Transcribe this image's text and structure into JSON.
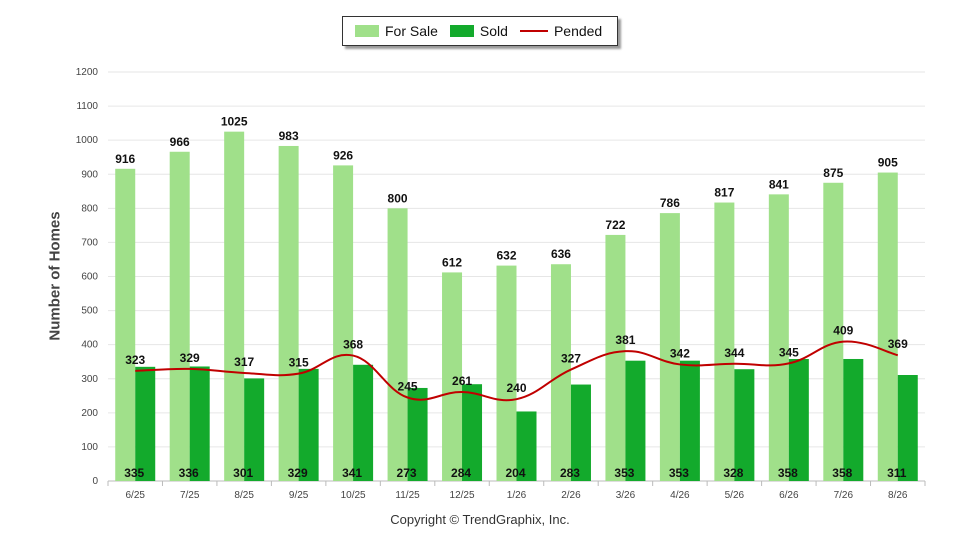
{
  "chart_data": {
    "type": "bar",
    "categories": [
      "6/25",
      "7/25",
      "8/25",
      "9/25",
      "10/25",
      "11/25",
      "12/25",
      "1/26",
      "2/26",
      "3/26",
      "4/26",
      "5/26",
      "6/26",
      "7/26",
      "8/26"
    ],
    "series": [
      {
        "name": "For Sale",
        "type": "bar",
        "color": "#a0e08a",
        "values": [
          916,
          966,
          1025,
          983,
          926,
          800,
          612,
          632,
          636,
          722,
          786,
          817,
          841,
          875,
          905
        ]
      },
      {
        "name": "Sold",
        "type": "bar",
        "color": "#13aa2c",
        "values": [
          335,
          336,
          301,
          329,
          341,
          273,
          284,
          204,
          283,
          353,
          353,
          328,
          358,
          358,
          311
        ]
      },
      {
        "name": "Pended",
        "type": "line",
        "color": "#c00000",
        "values": [
          323,
          329,
          317,
          315,
          368,
          245,
          261,
          240,
          327,
          381,
          342,
          344,
          345,
          409,
          369
        ]
      }
    ],
    "ylabel": "Number of Homes",
    "ylim": [
      0,
      1200
    ],
    "yticks": [
      0,
      100,
      200,
      300,
      400,
      500,
      600,
      700,
      800,
      900,
      1000,
      1100,
      1200
    ],
    "grid": true,
    "legend_position": "top-center"
  },
  "footer": "Copyright © TrendGraphix, Inc."
}
